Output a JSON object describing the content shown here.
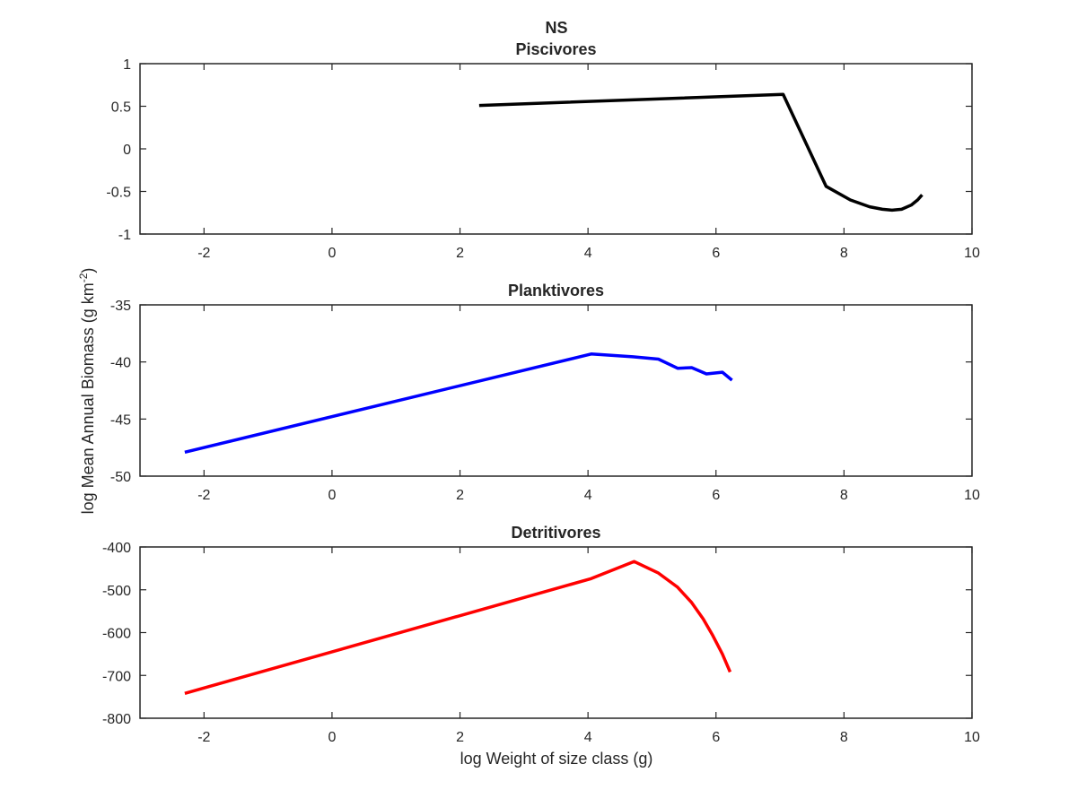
{
  "figure": {
    "title": "NS",
    "xlabel": "log Weight of size class (g)",
    "ylabel_main": "log Mean Annual Biomass (g km",
    "ylabel_sup": "-2",
    "ylabel_close": ")"
  },
  "chart_data": [
    {
      "type": "line",
      "title": "Piscivores",
      "xlabel": "",
      "ylabel": "",
      "xlim": [
        -3,
        10
      ],
      "ylim": [
        -1,
        1
      ],
      "xticks": [
        -2,
        0,
        2,
        4,
        6,
        8,
        10
      ],
      "yticks": [
        -1,
        -0.5,
        0,
        0.5,
        1
      ],
      "grid": false,
      "series": [
        {
          "color": "#000000",
          "x": [
            2.3,
            7.05,
            7.72,
            8.1,
            8.4,
            8.6,
            8.75,
            8.9,
            9.05,
            9.15,
            9.22
          ],
          "y": [
            0.51,
            0.64,
            -0.44,
            -0.6,
            -0.68,
            -0.71,
            -0.72,
            -0.71,
            -0.66,
            -0.6,
            -0.54
          ]
        }
      ]
    },
    {
      "type": "line",
      "title": "Planktivores",
      "xlabel": "",
      "ylabel": "",
      "xlim": [
        -3,
        10
      ],
      "ylim": [
        -50,
        -35
      ],
      "xticks": [
        -2,
        0,
        2,
        4,
        6,
        8,
        10
      ],
      "yticks": [
        -50,
        -45,
        -40,
        -35
      ],
      "grid": false,
      "series": [
        {
          "color": "#0000ff",
          "x": [
            -2.3,
            4.05,
            4.7,
            5.1,
            5.4,
            5.62,
            5.85,
            6.1,
            6.25
          ],
          "y": [
            -47.9,
            -39.3,
            -39.55,
            -39.75,
            -40.55,
            -40.5,
            -41.05,
            -40.9,
            -41.6
          ]
        }
      ]
    },
    {
      "type": "line",
      "title": "Detritivores",
      "xlabel": "log Weight of size class (g)",
      "ylabel": "",
      "xlim": [
        -3,
        10
      ],
      "ylim": [
        -800,
        -400
      ],
      "xticks": [
        -2,
        0,
        2,
        4,
        6,
        8,
        10
      ],
      "yticks": [
        -800,
        -700,
        -600,
        -500,
        -400
      ],
      "grid": false,
      "series": [
        {
          "color": "#ff0000",
          "x": [
            -2.3,
            4.05,
            4.72,
            5.1,
            5.4,
            5.62,
            5.8,
            5.95,
            6.1,
            6.22
          ],
          "y": [
            -742,
            -474,
            -434,
            -461,
            -494,
            -530,
            -568,
            -607,
            -650,
            -692
          ]
        }
      ]
    }
  ]
}
